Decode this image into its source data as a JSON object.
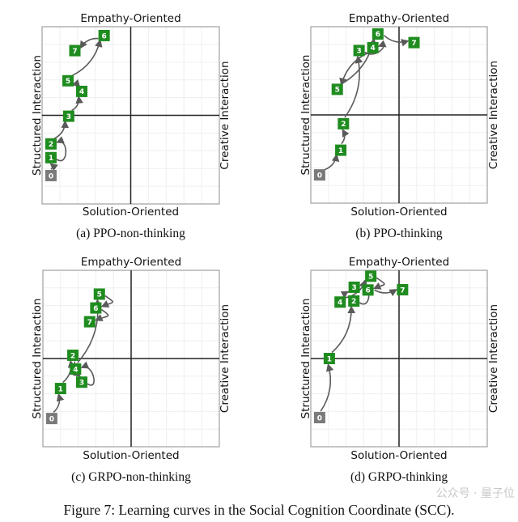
{
  "chart_data": [
    {
      "type": "scatter",
      "caption": "(a) PPO-non-thinking",
      "top_label": "Empathy-Oriented",
      "bottom_label": "Solution-Oriented",
      "left_label": "Structured Interaction",
      "right_label": "Creative Interaction",
      "xlim": [
        -1,
        1
      ],
      "ylim": [
        -1,
        1
      ],
      "grid": true,
      "points": [
        {
          "label": "0",
          "x": -0.9,
          "y": -0.68
        },
        {
          "label": "1",
          "x": -0.9,
          "y": -0.46
        },
        {
          "label": "2",
          "x": -0.9,
          "y": -0.34
        },
        {
          "label": "3",
          "x": -0.7,
          "y": -0.01
        },
        {
          "label": "4",
          "x": -0.56,
          "y": 0.27
        },
        {
          "label": "5",
          "x": -0.7,
          "y": 0.39
        },
        {
          "label": "6",
          "x": -0.3,
          "y": 0.9
        },
        {
          "label": "7",
          "x": -0.63,
          "y": 0.73
        }
      ]
    },
    {
      "type": "scatter",
      "caption": "(b) PPO-thinking",
      "top_label": "Empathy-Oriented",
      "bottom_label": "Solution-Oriented",
      "left_label": "Structured Interaction",
      "right_label": "Creative Interaction",
      "xlim": [
        -1,
        1
      ],
      "ylim": [
        -1,
        1
      ],
      "grid": true,
      "points": [
        {
          "label": "0",
          "x": -0.9,
          "y": -0.68
        },
        {
          "label": "1",
          "x": -0.66,
          "y": -0.4
        },
        {
          "label": "2",
          "x": -0.63,
          "y": -0.1
        },
        {
          "label": "3",
          "x": -0.41,
          "y": 0.73
        },
        {
          "label": "4",
          "x": -0.34,
          "y": 0.78
        },
        {
          "label": "5",
          "x": -0.7,
          "y": 0.29
        },
        {
          "label": "6",
          "x": -0.24,
          "y": 0.9
        },
        {
          "label": "7",
          "x": 0.17,
          "y": 0.82
        }
      ]
    },
    {
      "type": "scatter",
      "caption": "(c) GRPO-non-thinking",
      "top_label": "Empathy-Oriented",
      "bottom_label": "Solution-Oriented",
      "left_label": "Structured Interaction",
      "right_label": "Creative Interaction",
      "xlim": [
        -1,
        1
      ],
      "ylim": [
        -1,
        1
      ],
      "grid": true,
      "points": [
        {
          "label": "0",
          "x": -0.9,
          "y": -0.68
        },
        {
          "label": "1",
          "x": -0.8,
          "y": -0.34
        },
        {
          "label": "2",
          "x": -0.66,
          "y": 0.03
        },
        {
          "label": "3",
          "x": -0.56,
          "y": -0.24
        },
        {
          "label": "4",
          "x": -0.63,
          "y": -0.14
        },
        {
          "label": "5",
          "x": -0.36,
          "y": 0.73
        },
        {
          "label": "6",
          "x": -0.4,
          "y": 0.56
        },
        {
          "label": "7",
          "x": -0.47,
          "y": 0.43
        }
      ]
    },
    {
      "type": "scatter",
      "caption": "(d) GRPO-thinking",
      "top_label": "Empathy-Oriented",
      "bottom_label": "Solution-Oriented",
      "left_label": "Structured Interaction",
      "right_label": "Creative Interaction",
      "xlim": [
        -1,
        1
      ],
      "ylim": [
        -1,
        1
      ],
      "grid": true,
      "points": [
        {
          "label": "0",
          "x": -0.9,
          "y": -0.67
        },
        {
          "label": "1",
          "x": -0.79,
          "y": 0.0
        },
        {
          "label": "2",
          "x": -0.52,
          "y": 0.66
        },
        {
          "label": "3",
          "x": -0.47,
          "y": 0.8
        },
        {
          "label": "4",
          "x": -0.66,
          "y": 0.64
        },
        {
          "label": "5",
          "x": -0.32,
          "y": 0.89
        },
        {
          "label": "6",
          "x": -0.39,
          "y": 0.82
        },
        {
          "label": "7",
          "x": 0.04,
          "y": 0.78
        }
      ]
    }
  ],
  "figure_caption": "Figure 7: Learning curves in the Social Cognition Coordinate (SCC).",
  "watermark": "公众号 · 量子位",
  "colors": {
    "point": "#1f8c1f",
    "start_point": "#7a7a7a",
    "arrow": "#5a5a5a",
    "axis": "#222222",
    "frame": "#a0a0a0",
    "grid": "#efefef"
  }
}
